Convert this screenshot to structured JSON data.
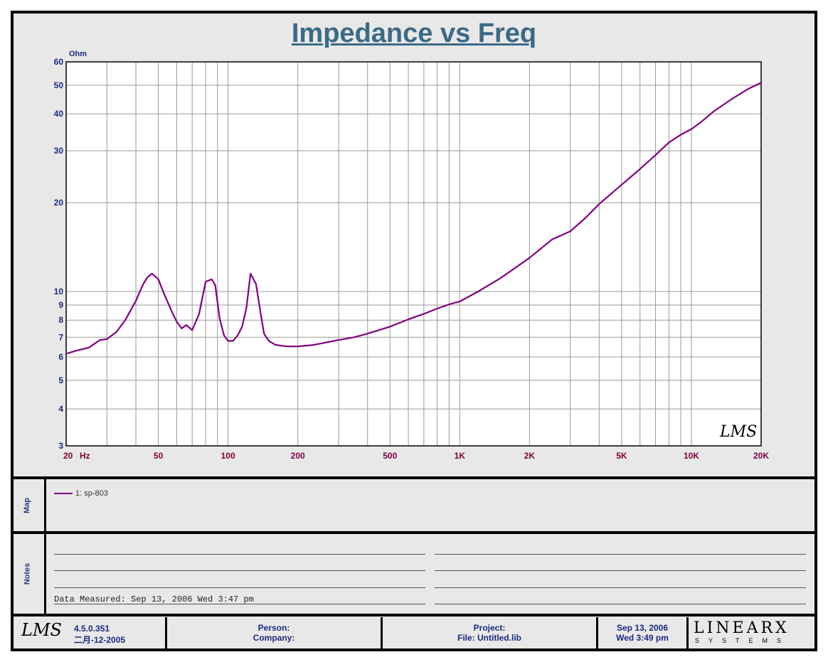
{
  "title": "Impedance vs Freq",
  "chart_data": {
    "type": "line",
    "title": "Impedance vs Freq",
    "xlabel": "Hz",
    "ylabel": "Ohm",
    "x_scale": "log",
    "y_scale": "log",
    "xlim": [
      20,
      20000
    ],
    "ylim": [
      3,
      60
    ],
    "grid": true,
    "x_ticks": [
      {
        "value": 20,
        "label": "20"
      },
      {
        "value": 50,
        "label": "50"
      },
      {
        "value": 100,
        "label": "100"
      },
      {
        "value": 200,
        "label": "200"
      },
      {
        "value": 500,
        "label": "500"
      },
      {
        "value": 1000,
        "label": "1K"
      },
      {
        "value": 2000,
        "label": "2K"
      },
      {
        "value": 5000,
        "label": "5K"
      },
      {
        "value": 10000,
        "label": "10K"
      },
      {
        "value": 20000,
        "label": "20K"
      }
    ],
    "y_ticks": [
      {
        "value": 3,
        "label": "3"
      },
      {
        "value": 4,
        "label": "4"
      },
      {
        "value": 5,
        "label": "5"
      },
      {
        "value": 6,
        "label": "6"
      },
      {
        "value": 7,
        "label": "7"
      },
      {
        "value": 8,
        "label": "8"
      },
      {
        "value": 9,
        "label": "9"
      },
      {
        "value": 10,
        "label": "10"
      },
      {
        "value": 20,
        "label": "20"
      },
      {
        "value": 30,
        "label": "30"
      },
      {
        "value": 40,
        "label": "40"
      },
      {
        "value": 50,
        "label": "50"
      },
      {
        "value": 60,
        "label": "60"
      }
    ],
    "series": [
      {
        "name": "1: sp-803",
        "color": "#800080",
        "x": [
          20,
          22,
          25,
          28,
          30,
          33,
          36,
          40,
          43,
          45,
          47,
          50,
          53,
          57,
          60,
          63,
          66,
          70,
          75,
          80,
          85,
          88,
          92,
          96,
          100,
          105,
          110,
          115,
          120,
          125,
          132,
          138,
          143,
          150,
          160,
          170,
          180,
          200,
          230,
          260,
          300,
          350,
          400,
          500,
          600,
          700,
          800,
          900,
          1000,
          1200,
          1500,
          2000,
          2500,
          3000,
          3500,
          4000,
          5000,
          6000,
          7000,
          8000,
          9000,
          10000,
          11000,
          12500,
          15000,
          17500,
          20000
        ],
        "values": [
          6.15,
          6.3,
          6.45,
          6.85,
          6.9,
          7.3,
          8.0,
          9.3,
          10.6,
          11.2,
          11.5,
          11.0,
          9.8,
          8.6,
          7.9,
          7.5,
          7.7,
          7.4,
          8.4,
          10.8,
          11.0,
          10.5,
          8.1,
          7.1,
          6.8,
          6.8,
          7.1,
          7.6,
          8.8,
          11.5,
          10.6,
          8.5,
          7.2,
          6.8,
          6.6,
          6.55,
          6.52,
          6.52,
          6.58,
          6.7,
          6.85,
          7.0,
          7.2,
          7.6,
          8.05,
          8.4,
          8.75,
          9.05,
          9.25,
          10.0,
          11.1,
          13.0,
          15.0,
          16.0,
          17.8,
          19.8,
          23.0,
          26.0,
          29.0,
          32.0,
          34.0,
          35.5,
          37.5,
          40.8,
          45.0,
          48.5,
          51.0
        ]
      }
    ],
    "annotations": [
      "LMS"
    ]
  },
  "legend": {
    "item_label": "1: sp-803",
    "color": "#800080"
  },
  "panels": {
    "map_label": "Map",
    "notes_label": "Notes"
  },
  "notes": {
    "measured": "Data Measured: Sep 13, 2006  Wed  3:47 pm"
  },
  "footer": {
    "logo": "LMS",
    "version": "4.5.0.351",
    "version_date": "二月-12-2005",
    "person_label": "Person:",
    "company_label": "Company:",
    "project_label": "Project:",
    "file_label": "File: Untitled.lib",
    "date": "Sep 13, 2006",
    "time": "Wed  3:49 pm",
    "brand": "LINEARX",
    "brand_sub": "SYSTEMS"
  },
  "colors": {
    "title": "#3a6a86",
    "axis_text": "#1a2a80",
    "x_tick_text": "#800040",
    "trace": "#800080",
    "grid": "#999999"
  }
}
